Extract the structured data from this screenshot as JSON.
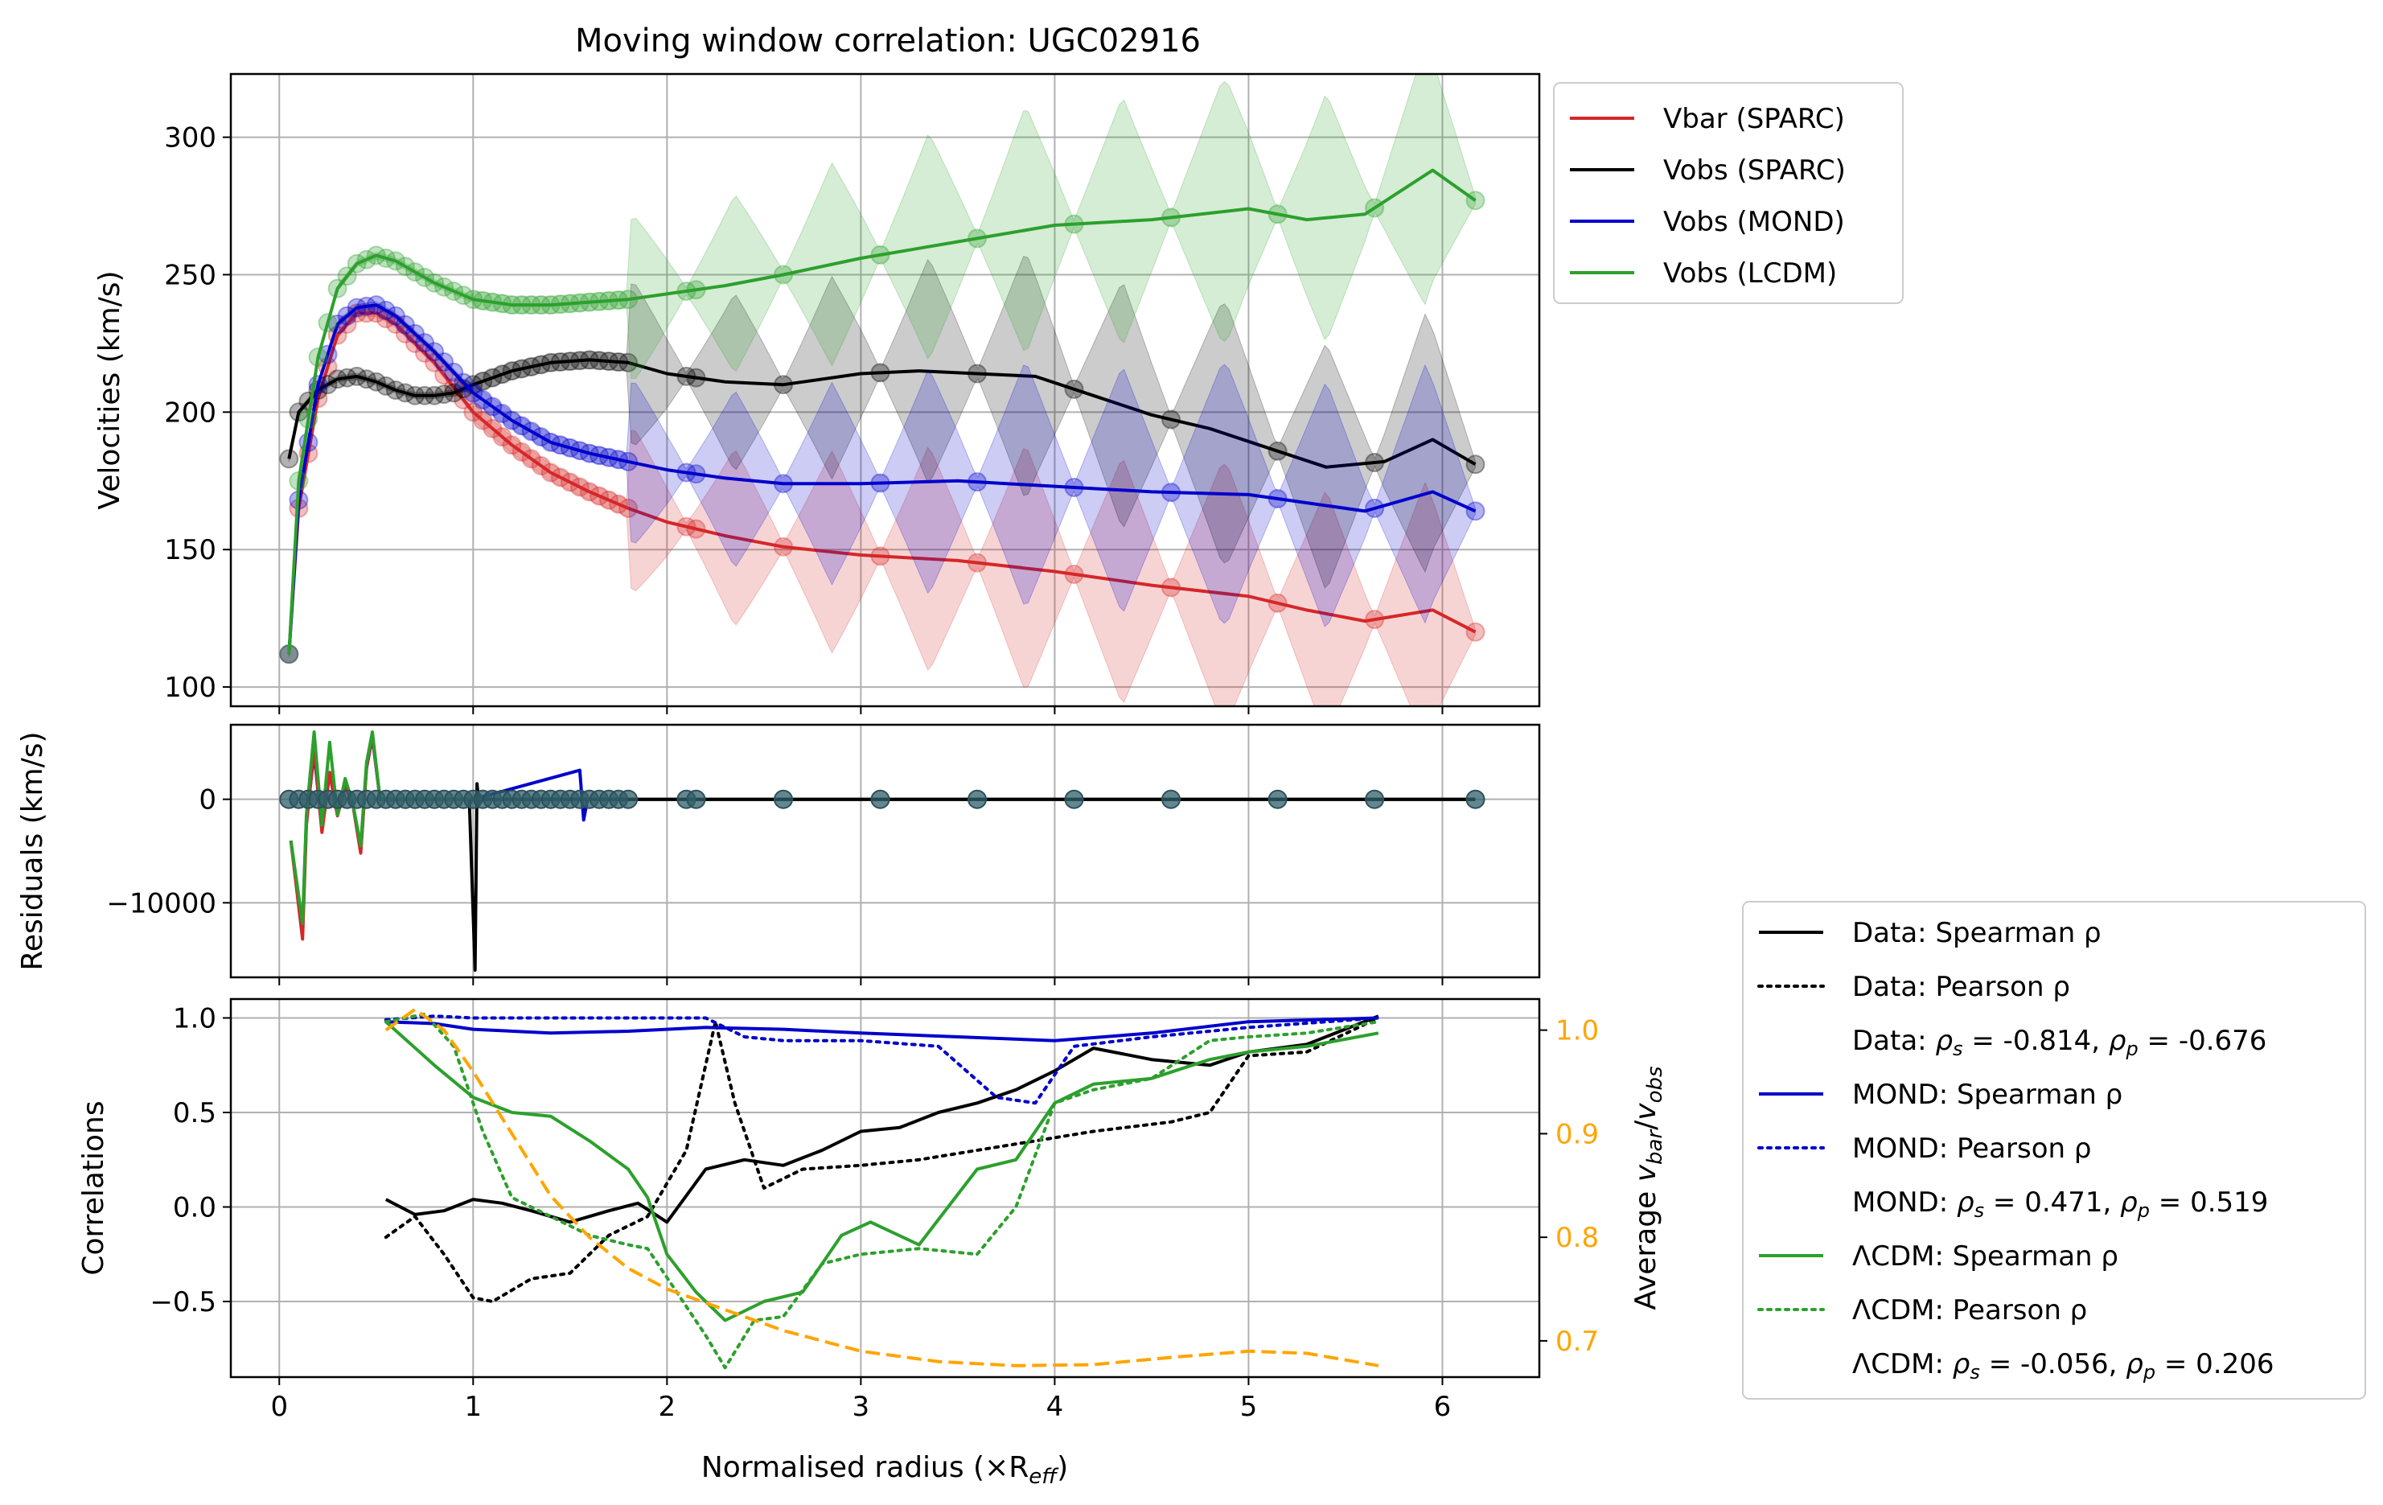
{
  "figure": {
    "title": "Moving window correlation: UGC02916"
  },
  "colors": {
    "vbar": "#d62728",
    "vobs": "#000000",
    "mond": "#0000cc",
    "lcdm": "#2ca02c",
    "ratio": "#ffa500",
    "grid": "#b0b0b0"
  },
  "chart_data": [
    {
      "type": "line",
      "panel": "velocities",
      "title": "Moving window correlation: UGC02916",
      "xlabel": "",
      "ylabel": "Velocities (km/s)",
      "xlim": [
        -0.25,
        6.5
      ],
      "ylim": [
        93,
        323
      ],
      "xticks": [
        0,
        1,
        2,
        3,
        4,
        5,
        6
      ],
      "yticks": [
        100,
        150,
        200,
        250,
        300
      ],
      "grid": true,
      "legend": "outside-top-right",
      "series": [
        {
          "name": "Vbar (SPARC)",
          "color": "#d62728",
          "x": [
            0.05,
            0.1,
            0.2,
            0.3,
            0.4,
            0.5,
            0.6,
            0.8,
            1.0,
            1.2,
            1.4,
            1.6,
            1.8,
            2.0,
            2.3,
            2.6,
            3.0,
            3.5,
            4.0,
            4.5,
            5.0,
            5.3,
            5.6,
            5.95,
            6.17
          ],
          "y": [
            112,
            165,
            205,
            228,
            236,
            236,
            232,
            218,
            200,
            188,
            178,
            171,
            165,
            160,
            155,
            151,
            148,
            146,
            142,
            137,
            133,
            128,
            124,
            128,
            120
          ]
        },
        {
          "name": "Vobs (SPARC)",
          "color": "#000000",
          "x": [
            0.05,
            0.1,
            0.2,
            0.3,
            0.4,
            0.5,
            0.6,
            0.7,
            0.8,
            0.9,
            1.0,
            1.2,
            1.4,
            1.6,
            1.8,
            2.0,
            2.3,
            2.6,
            3.0,
            3.3,
            3.6,
            3.9,
            4.2,
            4.5,
            4.8,
            5.1,
            5.4,
            5.7,
            5.95,
            6.17
          ],
          "y": [
            183,
            200,
            208,
            212,
            213,
            211,
            208,
            206,
            206,
            207,
            210,
            215,
            218,
            219,
            218,
            214,
            211,
            210,
            214,
            215,
            214,
            213,
            206,
            199,
            194,
            187,
            180,
            182,
            190,
            181
          ]
        },
        {
          "name": "Vobs (MOND)",
          "color": "#0000cc",
          "x": [
            0.05,
            0.1,
            0.2,
            0.3,
            0.4,
            0.5,
            0.6,
            0.8,
            1.0,
            1.2,
            1.4,
            1.6,
            1.8,
            2.0,
            2.3,
            2.6,
            3.0,
            3.5,
            4.0,
            4.5,
            5.0,
            5.3,
            5.6,
            5.95,
            6.17
          ],
          "y": [
            112,
            168,
            210,
            232,
            238,
            239,
            235,
            222,
            207,
            197,
            189,
            185,
            182,
            179,
            176,
            174,
            174,
            175,
            173,
            171,
            170,
            167,
            164,
            171,
            164
          ]
        },
        {
          "name": "Vobs (LCDM)",
          "color": "#2ca02c",
          "x": [
            0.05,
            0.1,
            0.2,
            0.3,
            0.4,
            0.5,
            0.6,
            0.7,
            0.8,
            1.0,
            1.2,
            1.4,
            1.6,
            1.8,
            2.0,
            2.3,
            2.6,
            3.0,
            3.5,
            4.0,
            4.5,
            5.0,
            5.3,
            5.6,
            5.95,
            6.17
          ],
          "y": [
            112,
            175,
            220,
            245,
            254,
            257,
            255,
            251,
            247,
            241,
            239,
            239,
            240,
            241,
            243,
            246,
            250,
            256,
            262,
            268,
            270,
            274,
            270,
            272,
            288,
            277
          ]
        }
      ]
    },
    {
      "type": "line",
      "panel": "residuals",
      "xlabel": "",
      "ylabel": "Residuals (km/s)",
      "xlim": [
        -0.25,
        6.5
      ],
      "ylim": [
        -17200,
        7200
      ],
      "xticks": [
        0,
        1,
        2,
        3,
        4,
        5,
        6
      ],
      "yticks": [
        -10000,
        0
      ],
      "grid": true,
      "series": [
        {
          "color": "#0000cc",
          "x": [
            0.06,
            0.12,
            0.14,
            0.18,
            0.22,
            0.26,
            0.3,
            0.34,
            0.38,
            0.42,
            0.45,
            0.48,
            0.52,
            1.0,
            1.55,
            1.57,
            1.59,
            6.17
          ],
          "y": [
            -4000,
            -12500,
            -2000,
            4500,
            -3000,
            2500,
            -1500,
            1200,
            -500,
            -5000,
            3000,
            6000,
            0,
            0,
            2800,
            -2000,
            0,
            0
          ]
        },
        {
          "color": "#d62728",
          "x": [
            0.06,
            0.12,
            0.14,
            0.18,
            0.22,
            0.26,
            0.3,
            0.34,
            0.38,
            0.42,
            0.45,
            0.48,
            0.52,
            1.0,
            6.17
          ],
          "y": [
            -4000,
            -13500,
            -2500,
            5000,
            -3200,
            2600,
            -1600,
            1300,
            -600,
            -5200,
            3100,
            6200,
            0,
            0,
            0
          ]
        },
        {
          "color": "#2ca02c",
          "x": [
            0.06,
            0.12,
            0.14,
            0.18,
            0.22,
            0.26,
            0.3,
            0.34,
            0.38,
            0.42,
            0.45,
            0.48,
            0.52,
            1.0,
            6.17
          ],
          "y": [
            -4000,
            -12000,
            -1500,
            6500,
            -2500,
            5500,
            -1500,
            2000,
            -500,
            -4500,
            3500,
            6500,
            0,
            0,
            0
          ]
        },
        {
          "color": "#000000",
          "x": [
            0.98,
            1.01,
            1.02,
            1.03,
            1.05,
            6.17
          ],
          "y": [
            0,
            -16500,
            1500,
            -500,
            0,
            0
          ]
        }
      ],
      "points_x": [
        0.05,
        0.1,
        0.15,
        0.2,
        0.25,
        0.3,
        0.35,
        0.4,
        0.45,
        0.5,
        0.55,
        0.6,
        0.65,
        0.7,
        0.75,
        0.8,
        0.85,
        0.9,
        0.95,
        1.0,
        1.05,
        1.1,
        1.15,
        1.2,
        1.25,
        1.3,
        1.35,
        1.4,
        1.45,
        1.5,
        1.55,
        1.6,
        1.65,
        1.7,
        1.75,
        1.8,
        2.1,
        2.15,
        2.6,
        3.1,
        3.6,
        4.1,
        4.6,
        5.15,
        5.65,
        6.17
      ]
    },
    {
      "type": "line",
      "panel": "correlations",
      "xlabel": "Normalised radius (×R",
      "xlabel_sub": "eff",
      "xlabel_end": ")",
      "ylabel": "Correlations",
      "y2label_prefix": "Average ",
      "y2label_var": "v",
      "y2label_sub1": "bar",
      "y2label_sep": "/",
      "y2label_var2": "v",
      "y2label_sub2": "obs",
      "xlim": [
        -0.25,
        6.5
      ],
      "ylim": [
        -0.9,
        1.1
      ],
      "y2lim": [
        0.665,
        1.03
      ],
      "xticks": [
        0,
        1,
        2,
        3,
        4,
        5,
        6
      ],
      "yticks": [
        -0.5,
        0.0,
        0.5,
        1.0
      ],
      "y2ticks": [
        0.7,
        0.8,
        0.9,
        1.0
      ],
      "grid": true,
      "legend": "outside-bottom-right",
      "series": [
        {
          "name": "Data: Spearman ρ",
          "color": "#000000",
          "dash": "solid",
          "x": [
            0.55,
            0.7,
            0.85,
            1.0,
            1.15,
            1.3,
            1.5,
            1.7,
            1.85,
            2.0,
            2.2,
            2.4,
            2.6,
            2.8,
            3.0,
            3.2,
            3.4,
            3.6,
            3.8,
            4.0,
            4.2,
            4.5,
            4.8,
            5.0,
            5.3,
            5.67
          ],
          "y": [
            0.04,
            -0.04,
            -0.02,
            0.04,
            0.02,
            -0.02,
            -0.08,
            -0.02,
            0.02,
            -0.08,
            0.2,
            0.25,
            0.22,
            0.3,
            0.4,
            0.42,
            0.5,
            0.55,
            0.62,
            0.72,
            0.84,
            0.78,
            0.75,
            0.82,
            0.86,
            1.01
          ]
        },
        {
          "name": "Data: Pearson ρ",
          "color": "#000000",
          "dash": "dotted",
          "x": [
            0.55,
            0.7,
            0.85,
            1.0,
            1.1,
            1.3,
            1.5,
            1.7,
            1.9,
            2.1,
            2.25,
            2.35,
            2.5,
            2.7,
            3.0,
            3.3,
            3.6,
            3.9,
            4.2,
            4.6,
            4.8,
            5.0,
            5.3,
            5.67
          ],
          "y": [
            -0.16,
            -0.05,
            -0.25,
            -0.48,
            -0.5,
            -0.38,
            -0.35,
            -0.15,
            -0.05,
            0.3,
            0.98,
            0.55,
            0.1,
            0.2,
            0.22,
            0.25,
            0.3,
            0.35,
            0.4,
            0.45,
            0.5,
            0.8,
            0.82,
            1.0
          ]
        },
        {
          "name": "MOND: Spearman ρ",
          "color": "#0000cc",
          "dash": "solid",
          "x": [
            0.55,
            0.8,
            1.0,
            1.4,
            1.8,
            2.2,
            2.6,
            3.0,
            3.5,
            4.0,
            4.5,
            5.0,
            5.67
          ],
          "y": [
            0.98,
            0.97,
            0.94,
            0.92,
            0.93,
            0.95,
            0.94,
            0.92,
            0.9,
            0.88,
            0.92,
            0.98,
            1.0
          ]
        },
        {
          "name": "MOND: Pearson ρ",
          "color": "#0000cc",
          "dash": "dotted",
          "x": [
            0.55,
            0.8,
            1.0,
            1.5,
            2.0,
            2.2,
            2.4,
            2.6,
            3.0,
            3.4,
            3.7,
            3.9,
            4.1,
            4.5,
            5.0,
            5.67
          ],
          "y": [
            0.99,
            1.01,
            1.0,
            1.0,
            1.0,
            1.0,
            0.9,
            0.88,
            0.88,
            0.85,
            0.58,
            0.55,
            0.85,
            0.9,
            0.95,
            1.0
          ]
        },
        {
          "name": "ΛCDM: Spearman ρ",
          "color": "#2ca02c",
          "dash": "solid",
          "x": [
            0.55,
            0.8,
            1.0,
            1.2,
            1.4,
            1.6,
            1.8,
            1.9,
            2.0,
            2.15,
            2.3,
            2.5,
            2.7,
            2.9,
            3.05,
            3.3,
            3.6,
            3.8,
            4.0,
            4.2,
            4.5,
            4.8,
            5.0,
            5.3,
            5.67
          ],
          "y": [
            0.98,
            0.75,
            0.58,
            0.5,
            0.48,
            0.35,
            0.2,
            0.05,
            -0.25,
            -0.45,
            -0.6,
            -0.5,
            -0.45,
            -0.15,
            -0.08,
            -0.2,
            0.2,
            0.25,
            0.55,
            0.65,
            0.68,
            0.78,
            0.82,
            0.85,
            0.92
          ]
        },
        {
          "name": "ΛCDM: Pearson ρ",
          "color": "#2ca02c",
          "dash": "dotted",
          "x": [
            0.55,
            0.75,
            0.9,
            1.05,
            1.2,
            1.4,
            1.6,
            1.8,
            1.9,
            2.05,
            2.2,
            2.3,
            2.45,
            2.6,
            2.8,
            3.0,
            3.3,
            3.6,
            3.8,
            4.0,
            4.2,
            4.5,
            4.8,
            5.0,
            5.3,
            5.67
          ],
          "y": [
            0.98,
            1.02,
            0.85,
            0.4,
            0.05,
            -0.05,
            -0.15,
            -0.2,
            -0.22,
            -0.45,
            -0.68,
            -0.85,
            -0.6,
            -0.58,
            -0.3,
            -0.25,
            -0.22,
            -0.25,
            0.0,
            0.55,
            0.62,
            0.68,
            0.88,
            0.9,
            0.92,
            0.98
          ]
        }
      ],
      "ratio": {
        "color": "#ffa500",
        "x": [
          0.55,
          0.7,
          0.85,
          1.0,
          1.2,
          1.4,
          1.6,
          1.8,
          2.0,
          2.3,
          2.6,
          3.0,
          3.4,
          3.8,
          4.2,
          4.6,
          5.0,
          5.3,
          5.67
        ],
        "y": [
          1.0,
          1.02,
          1.0,
          0.96,
          0.9,
          0.84,
          0.8,
          0.77,
          0.75,
          0.73,
          0.71,
          0.69,
          0.68,
          0.676,
          0.677,
          0.684,
          0.69,
          0.688,
          0.676
        ]
      }
    }
  ],
  "legend_top": [
    {
      "label": "Vbar (SPARC)",
      "color": "#d62728"
    },
    {
      "label": "Vobs (SPARC)",
      "color": "#000000"
    },
    {
      "label": "Vobs (MOND)",
      "color": "#0000cc"
    },
    {
      "label": "Vobs (LCDM)",
      "color": "#2ca02c"
    }
  ],
  "legend_bottom": [
    {
      "kind": "line",
      "dash": "solid",
      "color": "#000000",
      "label": "Data: Spearman ρ"
    },
    {
      "kind": "line",
      "dash": "dotted",
      "color": "#000000",
      "label": "Data: Pearson ρ"
    },
    {
      "kind": "text",
      "label": "Data: ρ_s = -0.814, ρ_p = -0.676",
      "prefix": "Data: ",
      "rs": " = -0.814, ",
      "rp": " = -0.676"
    },
    {
      "kind": "line",
      "dash": "solid",
      "color": "#0000cc",
      "label": "MOND: Spearman ρ"
    },
    {
      "kind": "line",
      "dash": "dotted",
      "color": "#0000cc",
      "label": "MOND: Pearson ρ"
    },
    {
      "kind": "text",
      "label": "MOND: ρ_s = 0.471, ρ_p = 0.519",
      "prefix": "MOND: ",
      "rs": " = 0.471, ",
      "rp": " = 0.519"
    },
    {
      "kind": "line",
      "dash": "solid",
      "color": "#2ca02c",
      "label": "ΛCDM: Spearman ρ"
    },
    {
      "kind": "line",
      "dash": "dotted",
      "color": "#2ca02c",
      "label": "ΛCDM: Pearson ρ"
    },
    {
      "kind": "text",
      "label": "ΛCDM: ρ_s = -0.056, ρ_p = 0.206",
      "prefix": "ΛCDM: ",
      "rs": " = -0.056, ",
      "rp": " = 0.206"
    }
  ]
}
